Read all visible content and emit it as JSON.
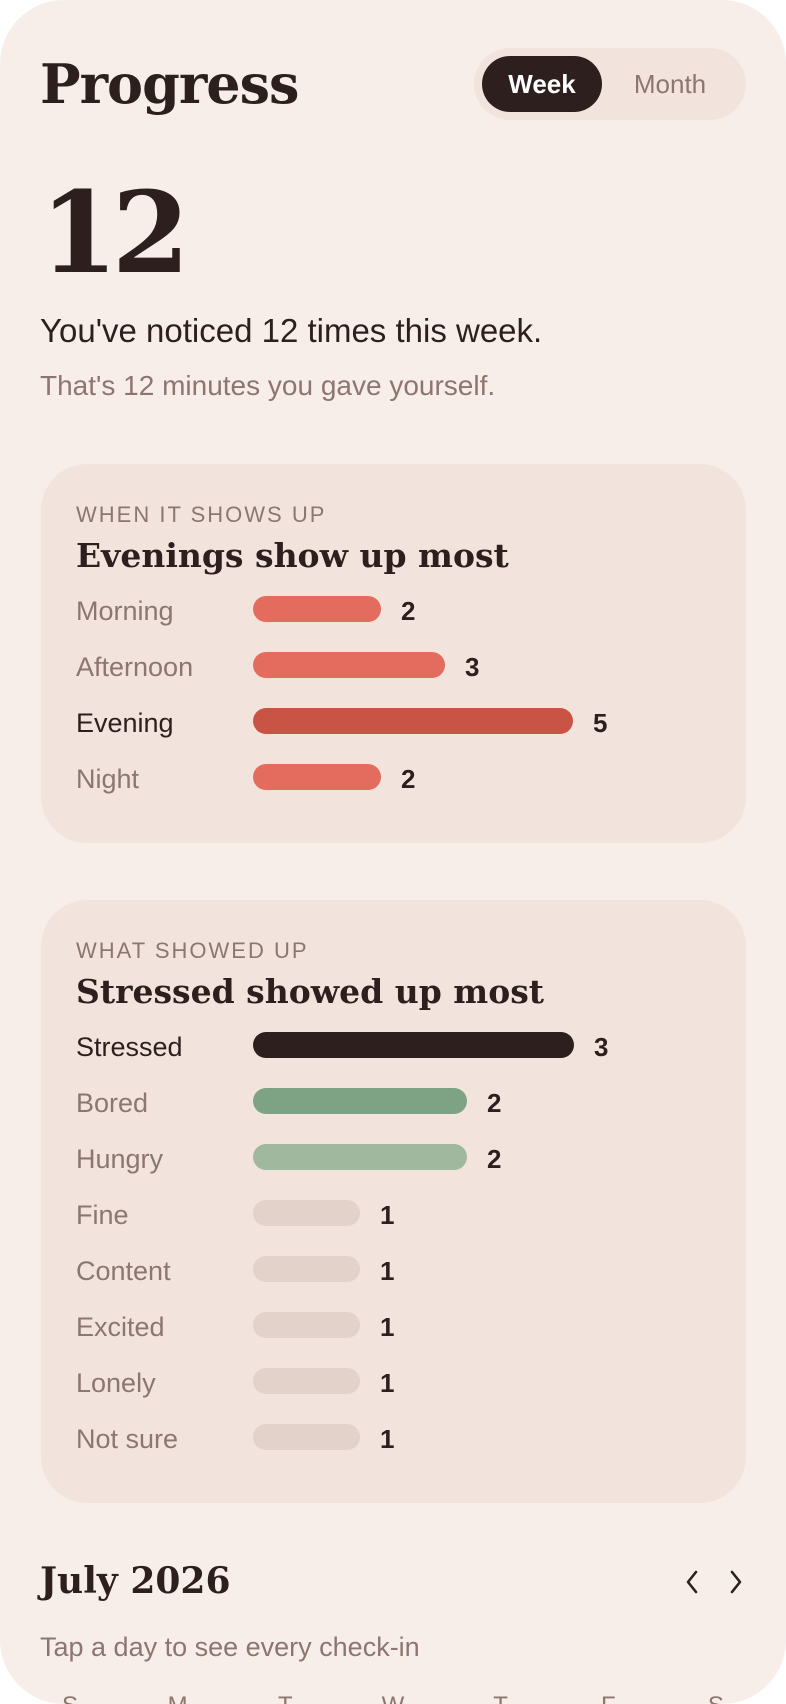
{
  "header": {
    "title": "Progress",
    "toggle": {
      "active": "Week",
      "inactive": "Month"
    }
  },
  "summary": {
    "count": "12",
    "headline": "You've noticed 12 times this week.",
    "subline": "That's 12 minutes you gave yourself."
  },
  "time_card": {
    "eyebrow": "WHEN IT SHOWS UP",
    "title": "Evenings show up most",
    "max": 5,
    "rows": [
      {
        "label": "Morning",
        "value": 2,
        "color": "#e46c5f",
        "highlight": false
      },
      {
        "label": "Afternoon",
        "value": 3,
        "color": "#e46c5f",
        "highlight": false
      },
      {
        "label": "Evening",
        "value": 5,
        "color": "#c95445",
        "highlight": true
      },
      {
        "label": "Night",
        "value": 2,
        "color": "#e46c5f",
        "highlight": false
      }
    ]
  },
  "mood_card": {
    "eyebrow": "WHAT SHOWED UP",
    "title": "Stressed showed up most",
    "max": 3,
    "rows": [
      {
        "label": "Stressed",
        "value": 3,
        "color": "#2d1f1d",
        "highlight": true
      },
      {
        "label": "Bored",
        "value": 2,
        "color": "#7da384",
        "highlight": false
      },
      {
        "label": "Hungry",
        "value": 2,
        "color": "#a0b89d",
        "highlight": false
      },
      {
        "label": "Fine",
        "value": 1,
        "color": "#e3d2ca",
        "highlight": false
      },
      {
        "label": "Content",
        "value": 1,
        "color": "#e3d2ca",
        "highlight": false
      },
      {
        "label": "Excited",
        "value": 1,
        "color": "#e3d2ca",
        "highlight": false
      },
      {
        "label": "Lonely",
        "value": 1,
        "color": "#e3d2ca",
        "highlight": false
      },
      {
        "label": "Not sure",
        "value": 1,
        "color": "#e3d2ca",
        "highlight": false
      }
    ]
  },
  "calendar": {
    "month": "July 2026",
    "hint": "Tap a day to see every check-in",
    "weekdays": [
      "S",
      "M",
      "T",
      "W",
      "T",
      "F",
      "S"
    ]
  },
  "colors": {
    "background": "#f8eee9",
    "card": "#f2e4dd",
    "ink": "#2d1f1d",
    "muted": "#8d7570"
  },
  "icons": {
    "prev": "chevron-left-icon",
    "next": "chevron-right-icon"
  }
}
